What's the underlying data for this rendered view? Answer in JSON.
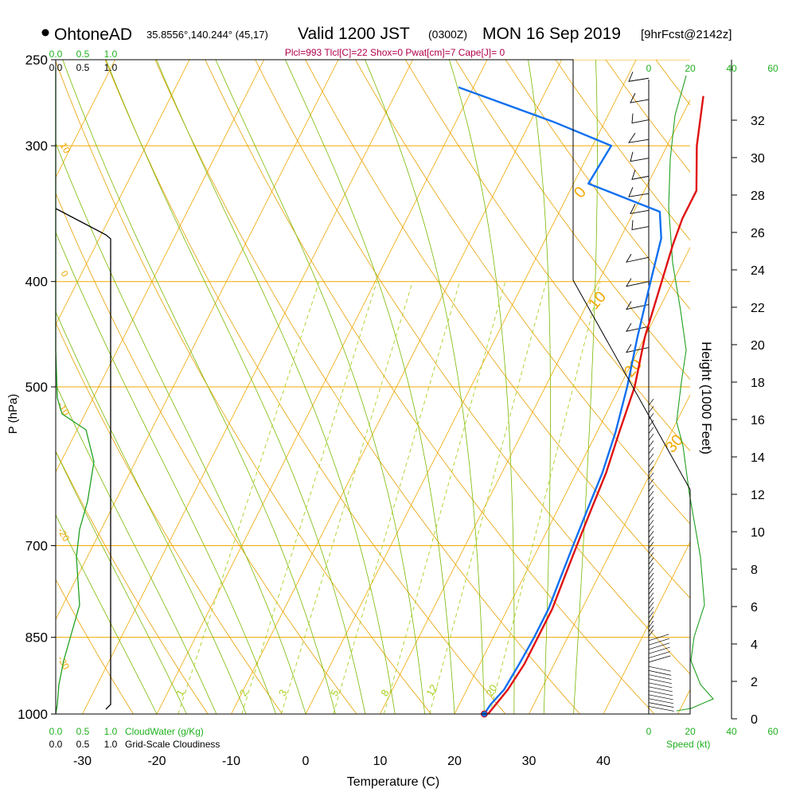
{
  "header": {
    "station": "OhtoneAD",
    "coords": "35.8556°,140.244° (45,17)",
    "valid_main": "Valid 1200 JST",
    "valid_z": "(0300Z)",
    "date": "MON 16 Sep 2019",
    "forecast": "[9hrFcst@2142z]",
    "indices": "Plcl=993 Tlcl[C]=22 Shox=0 Pwat[cm]=7 Cape[J]= 0"
  },
  "colors": {
    "isotherm": "#f0a800",
    "dry_adiabat": "#e8a000",
    "moist_adiabat": "#7ab800",
    "mixing_ratio": "#a8d020",
    "temperature": "#e01010",
    "dewpoint": "#1070f0",
    "cloud_water": "#20a020",
    "index_text": "#b0004a",
    "green_label": "#20b020"
  },
  "chart_data": {
    "type": "skew-t",
    "xlabel": "Temperature (C)",
    "ylabel": "P (hPa)",
    "right_label": "Height (1000 Feet)",
    "x_ticks": [
      "-30",
      "-20",
      "-10",
      "0",
      "10",
      "20",
      "30",
      "40"
    ],
    "x_tick_values": [
      -30,
      -20,
      -10,
      0,
      10,
      20,
      30,
      40
    ],
    "p_ticks": [
      "250",
      "300",
      "400",
      "500",
      "700",
      "850",
      "1000"
    ],
    "p_tick_values": [
      250,
      300,
      400,
      500,
      700,
      850,
      1000
    ],
    "height_ticks": [
      "0",
      "2",
      "4",
      "6",
      "8",
      "10",
      "12",
      "14",
      "16",
      "18",
      "20",
      "22",
      "24",
      "26",
      "28",
      "30",
      "32"
    ],
    "height_tick_values": [
      0,
      2,
      4,
      6,
      8,
      10,
      12,
      14,
      16,
      18,
      20,
      22,
      24,
      26,
      28,
      30,
      32
    ],
    "xlim": [
      -34,
      46
    ],
    "plim": [
      250,
      1000
    ],
    "temperature": [
      {
        "p": 1000,
        "t": 24.5
      },
      {
        "p": 950,
        "t": 25.5
      },
      {
        "p": 900,
        "t": 26
      },
      {
        "p": 850,
        "t": 26
      },
      {
        "p": 800,
        "t": 26
      },
      {
        "p": 750,
        "t": 25.5
      },
      {
        "p": 700,
        "t": 25
      },
      {
        "p": 650,
        "t": 24.5
      },
      {
        "p": 600,
        "t": 24
      },
      {
        "p": 550,
        "t": 23
      },
      {
        "p": 500,
        "t": 22
      },
      {
        "p": 450,
        "t": 20
      },
      {
        "p": 400,
        "t": 18.5
      },
      {
        "p": 370,
        "t": 17.5
      },
      {
        "p": 350,
        "t": 17
      },
      {
        "p": 330,
        "t": 17
      },
      {
        "p": 300,
        "t": 14
      },
      {
        "p": 270,
        "t": 11.5
      }
    ],
    "dewpoint": [
      {
        "p": 1000,
        "t": 24
      },
      {
        "p": 980,
        "t": 24.2
      },
      {
        "p": 950,
        "t": 25
      },
      {
        "p": 900,
        "t": 25.3
      },
      {
        "p": 850,
        "t": 25.5
      },
      {
        "p": 800,
        "t": 25.5
      },
      {
        "p": 750,
        "t": 25
      },
      {
        "p": 700,
        "t": 24.5
      },
      {
        "p": 650,
        "t": 24
      },
      {
        "p": 600,
        "t": 23.5
      },
      {
        "p": 550,
        "t": 22.5
      },
      {
        "p": 500,
        "t": 21
      },
      {
        "p": 450,
        "t": 19
      },
      {
        "p": 400,
        "t": 17
      },
      {
        "p": 365,
        "t": 15.5
      },
      {
        "p": 345,
        "t": 13.5
      },
      {
        "p": 325,
        "t": 2
      },
      {
        "p": 300,
        "t": 2.5
      },
      {
        "p": 285,
        "t": -7
      },
      {
        "p": 265,
        "t": -22
      }
    ],
    "isotherm_labels": [
      "-10",
      "0",
      "10",
      "20",
      "30"
    ],
    "mixing_ratio_labels": [
      "1",
      "2",
      "3",
      "5",
      "8",
      "12",
      "20"
    ],
    "mixing_ratio_values": [
      1,
      2,
      3,
      5,
      8,
      12,
      20
    ],
    "adiabat_labels": [
      "0",
      "10",
      "20",
      "30"
    ],
    "left_panel": {
      "top_scale_green": [
        "0.0",
        "0.5",
        "1.0"
      ],
      "top_scale_black": [
        "0.0",
        "0.5",
        "1.0"
      ],
      "bottom_scale_green": [
        "0.0",
        "0.5",
        "1.0"
      ],
      "bottom_scale_black": [
        "0.0",
        "0.5",
        "1.0"
      ],
      "cloud_water_label": "CloudWater (g/Kg)",
      "cloudiness_label": "Grid-Scale Cloudiness"
    },
    "wind_panel": {
      "top_scale": [
        "0",
        "20",
        "40",
        "60"
      ],
      "bottom_scale": [
        "0",
        "20",
        "40",
        "60"
      ],
      "speed_label": "Speed (kt)"
    }
  }
}
